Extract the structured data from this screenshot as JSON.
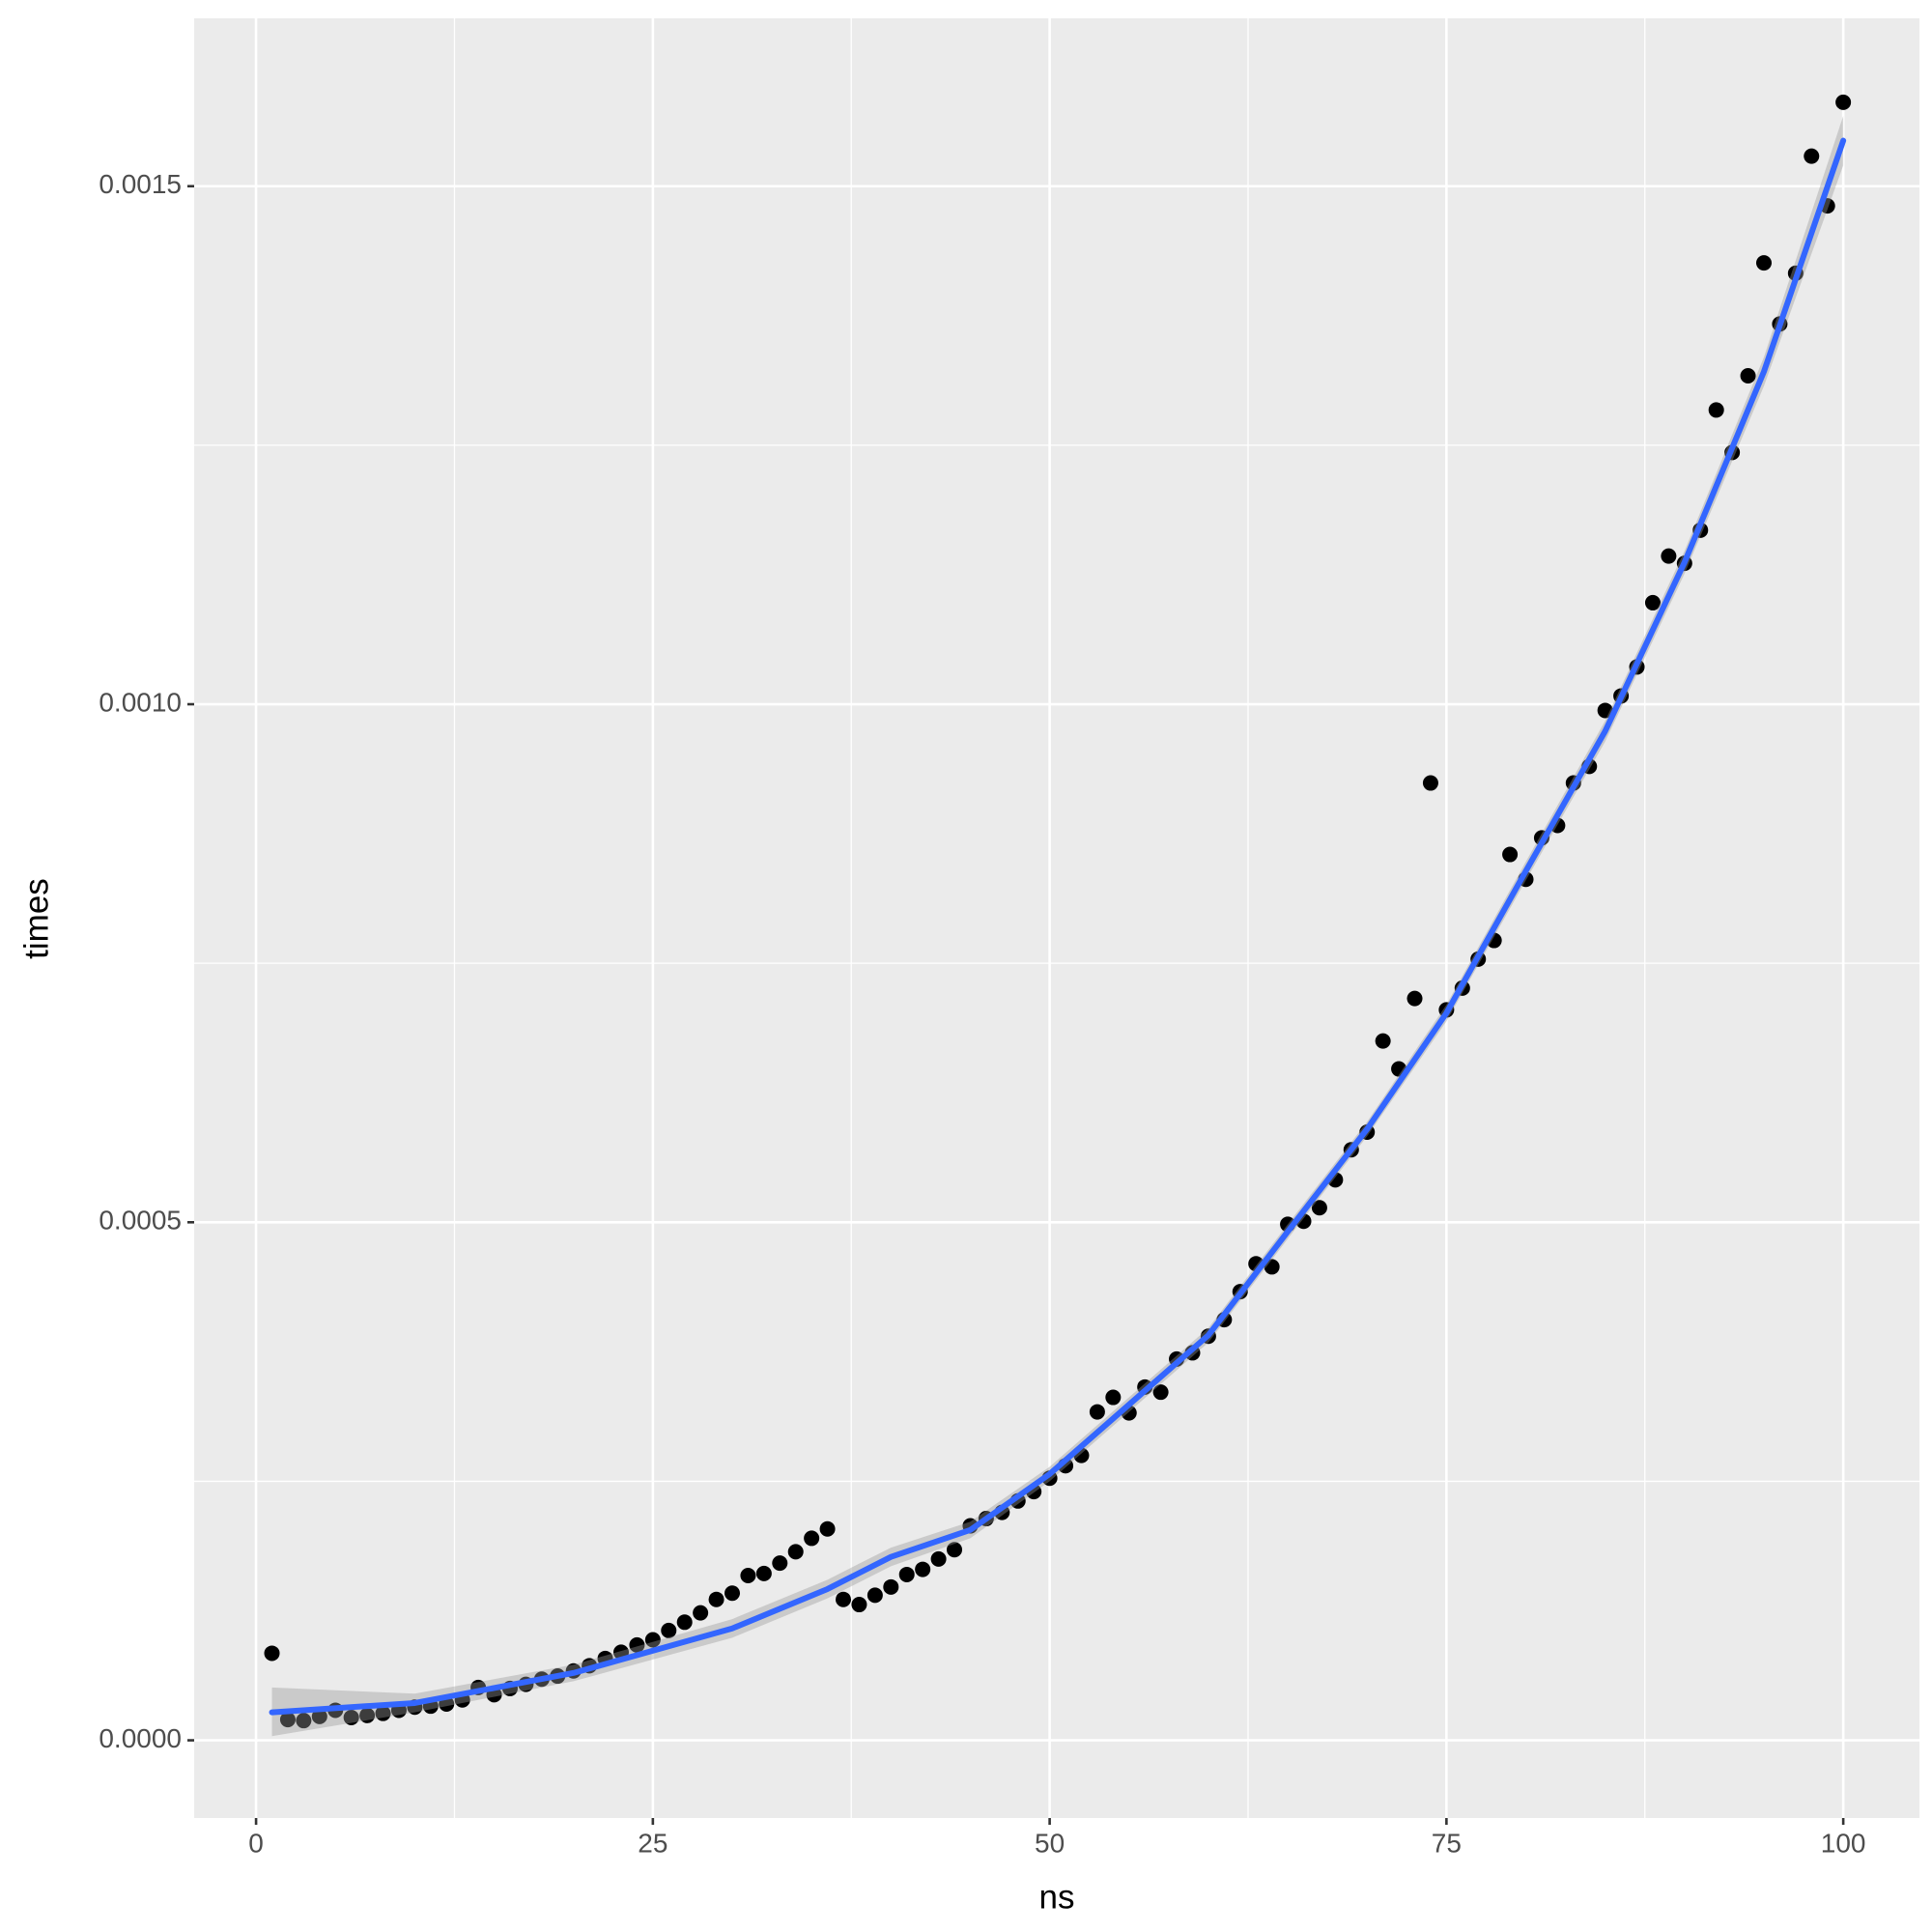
{
  "chart_data": {
    "type": "scatter",
    "x_label": "ns",
    "y_label": "times",
    "x": [
      1,
      2,
      3,
      4,
      5,
      6,
      7,
      8,
      9,
      10,
      11,
      12,
      13,
      14,
      15,
      16,
      17,
      18,
      19,
      20,
      21,
      22,
      23,
      24,
      25,
      26,
      27,
      28,
      29,
      30,
      31,
      32,
      33,
      34,
      35,
      36,
      37,
      38,
      39,
      40,
      41,
      42,
      43,
      44,
      45,
      46,
      47,
      48,
      49,
      50,
      51,
      52,
      53,
      54,
      55,
      56,
      57,
      58,
      59,
      60,
      61,
      62,
      63,
      64,
      65,
      66,
      67,
      68,
      69,
      70,
      71,
      72,
      73,
      74,
      75,
      76,
      77,
      78,
      79,
      80,
      81,
      82,
      83,
      84,
      85,
      86,
      87,
      88,
      89,
      90,
      91,
      92,
      93,
      94,
      95,
      96,
      97,
      98,
      99,
      100
    ],
    "values": [
      8.4e-05,
      2e-05,
      1.9e-05,
      2.3e-05,
      2.9e-05,
      2.2e-05,
      2.4e-05,
      2.6e-05,
      2.9e-05,
      3.2e-05,
      3.3e-05,
      3.5e-05,
      3.9e-05,
      5.1e-05,
      4.4e-05,
      5e-05,
      5.4e-05,
      5.9e-05,
      6.2e-05,
      6.7e-05,
      7.2e-05,
      7.9e-05,
      8.5e-05,
      9.2e-05,
      9.7e-05,
      0.000106,
      0.000114,
      0.000123,
      0.000136,
      0.000142,
      0.000159,
      0.000161,
      0.000171,
      0.000182,
      0.000195,
      0.000204,
      0.000136,
      0.000131,
      0.00014,
      0.000148,
      0.00016,
      0.000165,
      0.000175,
      0.000184,
      0.000207,
      0.000214,
      0.00022,
      0.000231,
      0.00024,
      0.000253,
      0.000265,
      0.000275,
      0.000317,
      0.000331,
      0.000316,
      0.000341,
      0.000336,
      0.000368,
      0.000374,
      0.00039,
      0.000406,
      0.000433,
      0.00046,
      0.000457,
      0.000498,
      0.000501,
      0.000514,
      0.000541,
      0.00057,
      0.000587,
      0.000675,
      0.000648,
      0.000716,
      0.000924,
      0.000705,
      0.000726,
      0.000754,
      0.000772,
      0.000855,
      0.000831,
      0.000871,
      0.000883,
      0.000924,
      0.00094,
      0.000994,
      0.001008,
      0.001036,
      0.001098,
      0.001143,
      0.001136,
      0.001168,
      0.001284,
      0.001243,
      0.001317,
      0.001426,
      0.001367,
      0.001416,
      0.001529,
      0.001481,
      0.001581
    ],
    "point_color": "#000000",
    "smooth": {
      "x": [
        1,
        10,
        20,
        30,
        36,
        40,
        45,
        50,
        55,
        60,
        65,
        70,
        75,
        80,
        85,
        90,
        95,
        100
      ],
      "values": [
        2.7e-05,
        3.6e-05,
        6.5e-05,
        0.000108,
        0.000146,
        0.000177,
        0.000203,
        0.000257,
        0.000324,
        0.000391,
        0.000491,
        0.00059,
        0.000702,
        0.000839,
        0.000974,
        0.001137,
        0.001321,
        0.001544
      ],
      "upper": [
        5.1e-05,
        4.5e-05,
        7.3e-05,
        0.000117,
        0.000155,
        0.000186,
        0.000211,
        0.000264,
        0.000331,
        0.000398,
        0.000498,
        0.000597,
        0.00071,
        0.000848,
        0.000984,
        0.001148,
        0.001335,
        0.001568
      ],
      "lower": [
        4e-06,
        2.7e-05,
        5.7e-05,
        9.9e-05,
        0.000137,
        0.000168,
        0.000195,
        0.00025,
        0.000317,
        0.000384,
        0.000484,
        0.000583,
        0.000694,
        0.00083,
        0.000964,
        0.001126,
        0.001307,
        0.00152
      ],
      "color": "#3366ff",
      "band_color": "#999999"
    },
    "xlim": [
      -3.9,
      104.8
    ],
    "ylim": [
      -7.5e-05,
      0.001662
    ],
    "xticks": [
      0,
      25,
      50,
      75,
      100
    ],
    "yticks": [
      {
        "value": 0,
        "label": "0.0000"
      },
      0.0005,
      {
        "value": 0.001,
        "label": "0.0010"
      },
      0.0015
    ],
    "x_minor_ticks": [
      12.5,
      37.5,
      62.5,
      87.5
    ],
    "y_minor_ticks": [
      0.00025,
      0.00075,
      0.00125
    ],
    "grid": true
  }
}
